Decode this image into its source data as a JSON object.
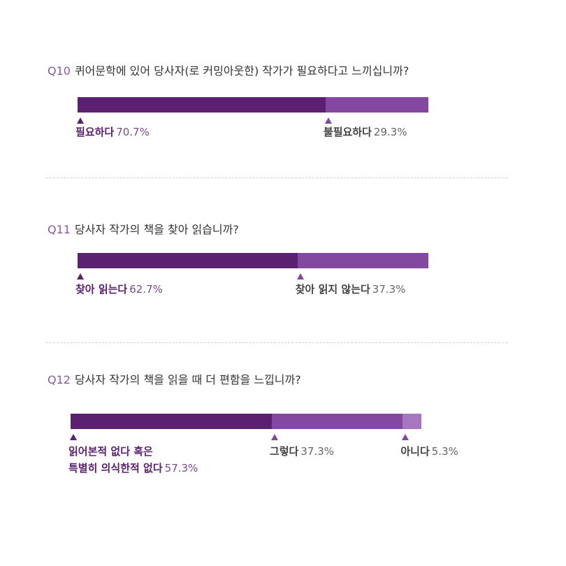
{
  "colors": {
    "dark": "#5b2170",
    "mid": "#8348a0",
    "light": "#a676c0"
  },
  "chart_data": [
    {
      "type": "bar",
      "qnum": "Q10",
      "title": "퀴어문학에 있어 당사자(로 커밍아웃한) 작가가 필요하다고 느끼십니까?",
      "categories": [
        "필요하다",
        "불필요하다"
      ],
      "values": [
        70.7,
        29.3
      ],
      "value_labels": [
        "70.7%",
        "29.3%"
      ],
      "label_lines": [
        [
          "필요하다"
        ],
        [
          "불필요하다"
        ]
      ]
    },
    {
      "type": "bar",
      "qnum": "Q11",
      "title": "당사자 작가의 책을 찾아 읽습니까?",
      "categories": [
        "찾아 읽는다",
        "찾아 읽지 않는다"
      ],
      "values": [
        62.7,
        37.3
      ],
      "value_labels": [
        "62.7%",
        "37.3%"
      ],
      "label_lines": [
        [
          "찾아 읽는다"
        ],
        [
          "찾아 읽지 않는다"
        ]
      ]
    },
    {
      "type": "bar",
      "qnum": "Q12",
      "title": "당사자 작가의 책을 읽을 때 더 편함을 느낍니까?",
      "categories": [
        "읽어본적 없다 혹은 특별히 의식한적 없다",
        "그렇다",
        "아니다"
      ],
      "values": [
        57.3,
        37.3,
        5.3
      ],
      "value_labels": [
        "57.3%",
        "37.3%",
        "5.3%"
      ],
      "label_lines": [
        [
          "읽어본적 없다 혹은",
          "특별히 의식한적 없다"
        ],
        [
          "그렇다"
        ],
        [
          "아니다"
        ]
      ]
    }
  ]
}
